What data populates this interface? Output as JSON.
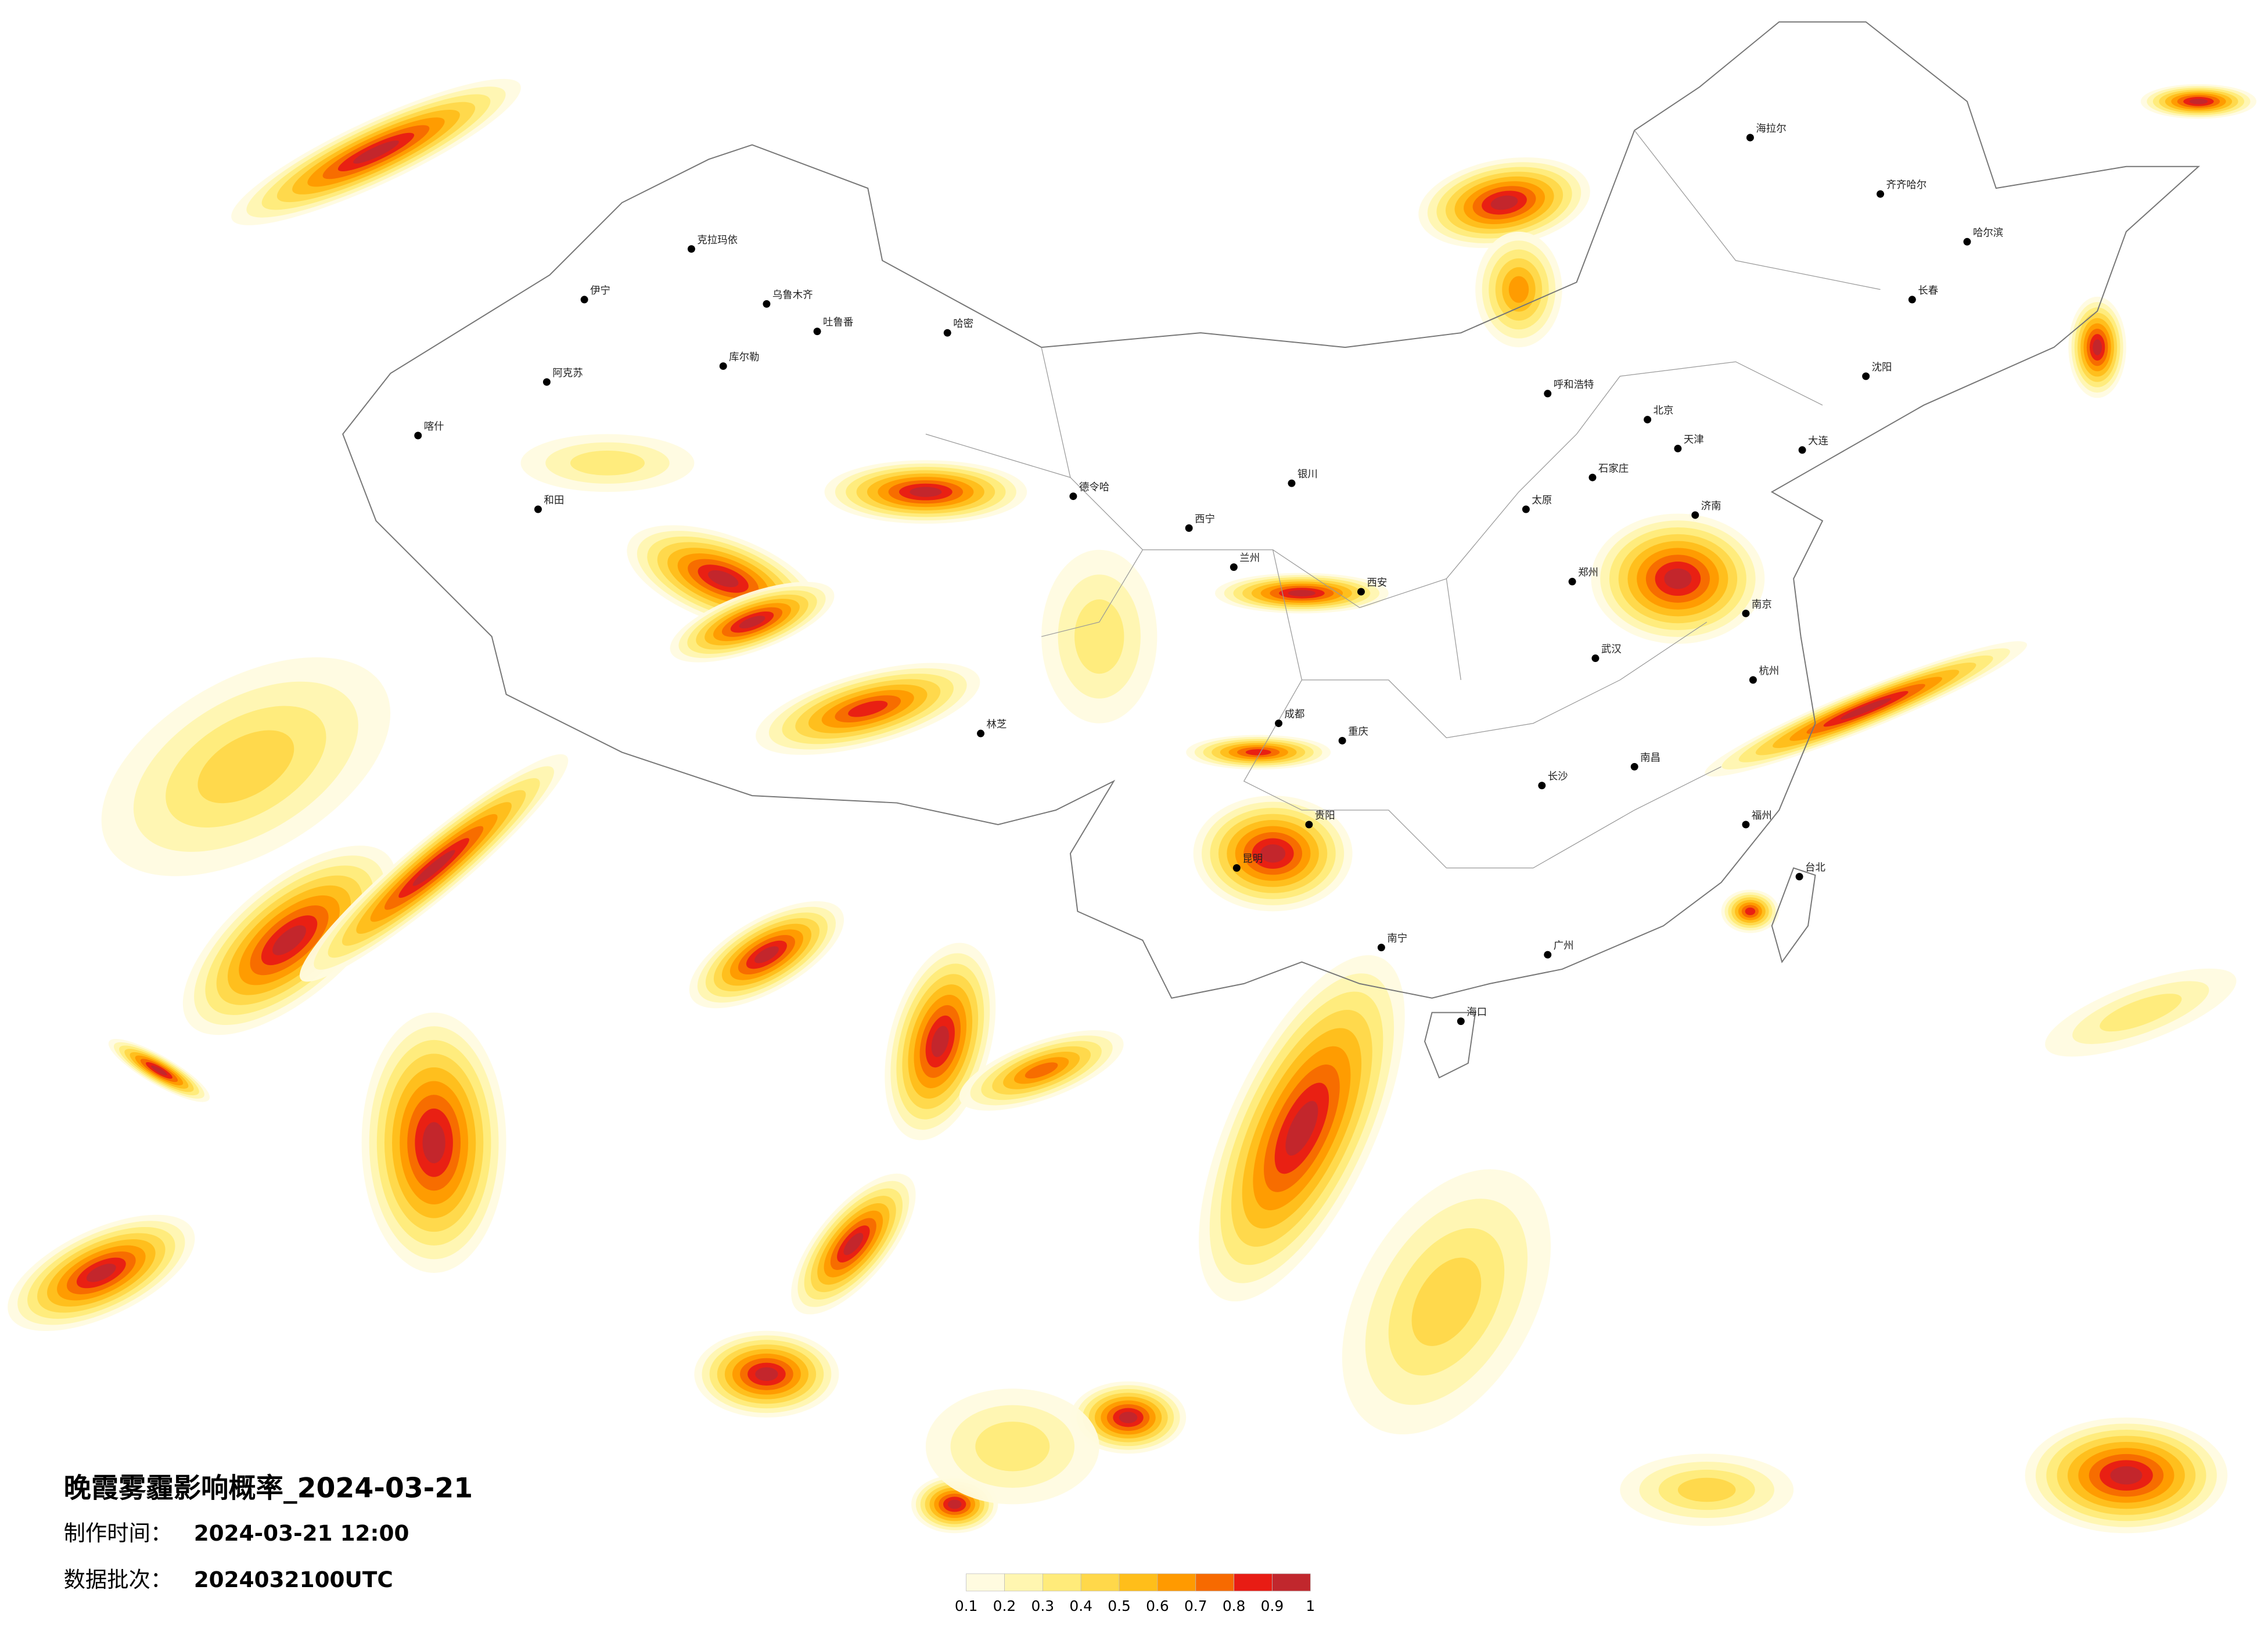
{
  "title": "晚霞雾霾影响概率_2024-03-21",
  "made_time": {
    "label": "制作时间：",
    "value": "2024-03-21 12:00"
  },
  "batch": {
    "label": "数据批次：",
    "value": "2024032100UTC"
  },
  "legend": {
    "ticks": [
      0.1,
      0.2,
      0.3,
      0.4,
      0.5,
      0.6,
      0.7,
      0.8,
      0.9,
      1
    ],
    "colors": [
      "#fffbe0",
      "#fff6b0",
      "#ffeb7a",
      "#ffd84a",
      "#ffbe1a",
      "#ff9a00",
      "#f76a00",
      "#e81c14",
      "#c1272d"
    ]
  },
  "cities": [
    "克拉玛依",
    "伊宁",
    "乌鲁木齐",
    "吐鲁番",
    "哈密",
    "库尔勒",
    "阿克苏",
    "喀什",
    "和田",
    "德令哈",
    "西宁",
    "兰州",
    "银川",
    "呼和浩特",
    "北京",
    "天津",
    "石家庄",
    "太原",
    "济南",
    "郑州",
    "西安",
    "成都",
    "重庆",
    "武汉",
    "长沙",
    "南京",
    "杭州",
    "南昌",
    "福州",
    "广州",
    "南宁",
    "贵阳",
    "昆明",
    "海口",
    "台北",
    "哈尔滨",
    "长春",
    "沈阳",
    "大连",
    "齐齐哈尔",
    "海拉尔",
    "林芝"
  ]
}
